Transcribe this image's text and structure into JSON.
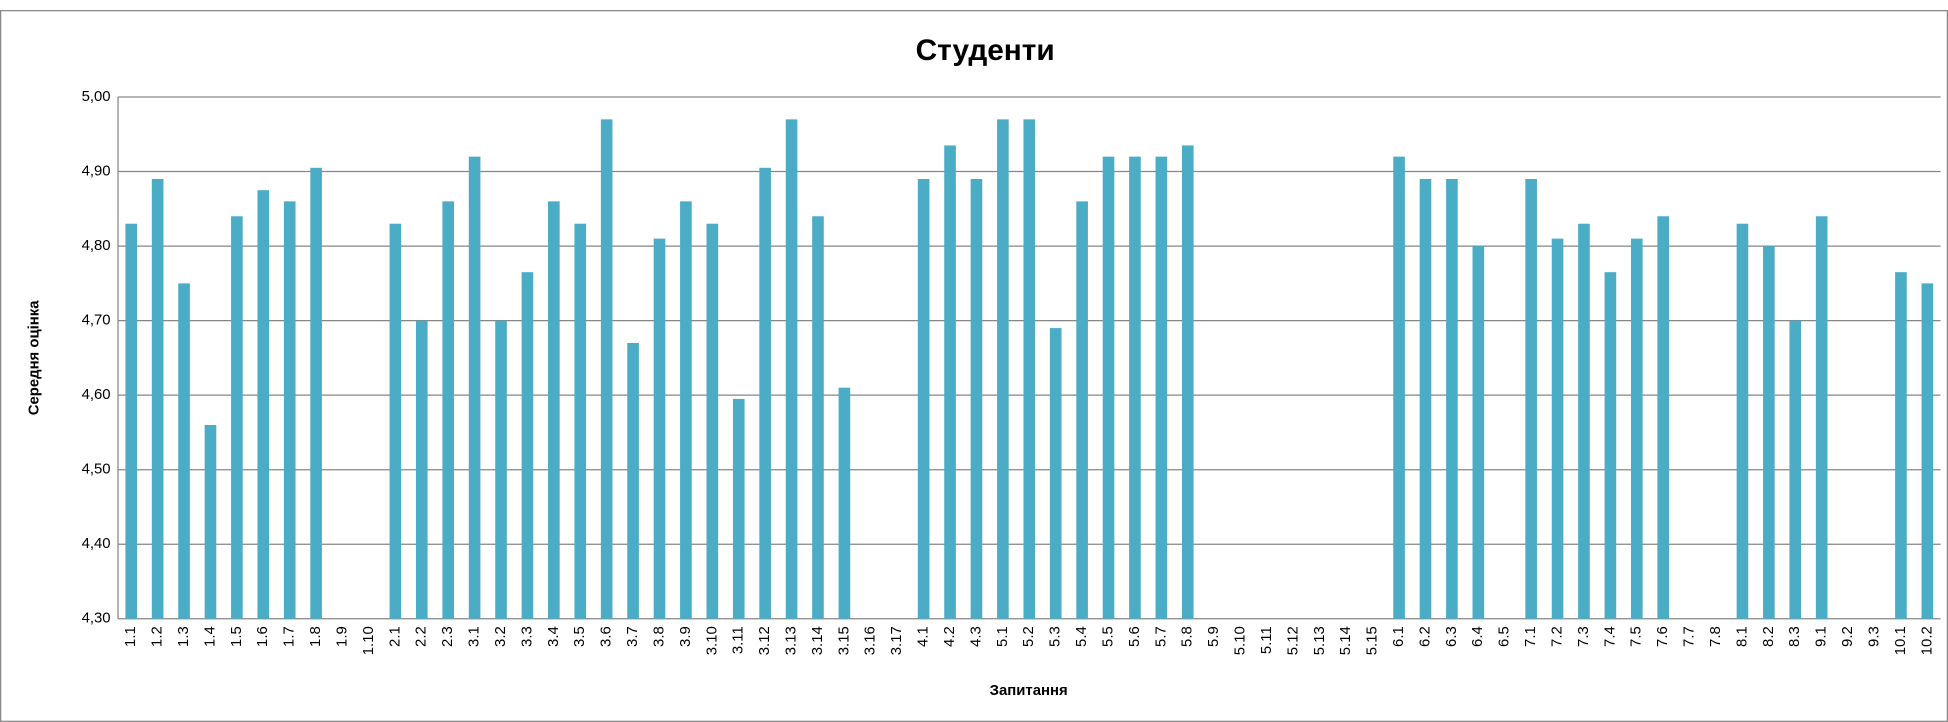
{
  "chart_data": {
    "type": "bar",
    "title": "Студенти",
    "x_label": "Запитання",
    "y_label": "Середня оцінка",
    "categories": [
      "1.1",
      "1.2",
      "1.3",
      "1.4",
      "1.5",
      "1.6",
      "1.7",
      "1.8",
      "1.9",
      "1.10",
      "2.1",
      "2.2",
      "2.3",
      "3.1",
      "3.2",
      "3.3",
      "3.4",
      "3.5",
      "3.6",
      "3.7",
      "3.8",
      "3.9",
      "3.10",
      "3.11",
      "3.12",
      "3.13",
      "3.14",
      "3.15",
      "3.16",
      "3.17",
      "4.1",
      "4.2",
      "4.3",
      "5.1",
      "5.2",
      "5.3",
      "5.4",
      "5.5",
      "5.6",
      "5.7",
      "5.8",
      "5.9",
      "5.10",
      "5.11",
      "5.12",
      "5.13",
      "5.14",
      "5.15",
      "6.1",
      "6.2",
      "6.3",
      "6.4",
      "6.5",
      "7.1",
      "7.2",
      "7.3",
      "7.4",
      "7.5",
      "7.6",
      "7.7",
      "7.8",
      "8.1",
      "8.2",
      "8.3",
      "9.1",
      "9.2",
      "9.3",
      "10.1",
      "10.2"
    ],
    "values": [
      4.83,
      4.89,
      4.75,
      4.56,
      4.84,
      4.875,
      4.86,
      4.905,
      null,
      null,
      4.83,
      4.7,
      4.86,
      4.92,
      4.7,
      4.765,
      4.86,
      4.83,
      4.97,
      4.67,
      4.81,
      4.86,
      4.83,
      4.595,
      4.905,
      4.97,
      4.84,
      4.61,
      null,
      null,
      4.89,
      4.935,
      4.89,
      4.97,
      4.97,
      4.69,
      4.86,
      4.92,
      4.92,
      4.92,
      4.935,
      null,
      null,
      null,
      null,
      null,
      null,
      null,
      4.92,
      4.89,
      4.89,
      4.8,
      null,
      4.89,
      4.81,
      4.83,
      4.765,
      4.81,
      4.84,
      null,
      null,
      4.83,
      4.8,
      4.7,
      4.84,
      null,
      null,
      4.765,
      4.75
    ],
    "color": "#4bacc6",
    "ylim": [
      4.3,
      5.0
    ],
    "yticks": [
      {
        "value": 4.3,
        "label": "4,30"
      },
      {
        "value": 4.4,
        "label": "4,40"
      },
      {
        "value": 4.5,
        "label": "4,50"
      },
      {
        "value": 4.6,
        "label": "4,60"
      },
      {
        "value": 4.7,
        "label": "4,70"
      },
      {
        "value": 4.8,
        "label": "4,80"
      },
      {
        "value": 4.9,
        "label": "4,90"
      },
      {
        "value": 5.0,
        "label": "5,00"
      }
    ],
    "grid": true
  }
}
